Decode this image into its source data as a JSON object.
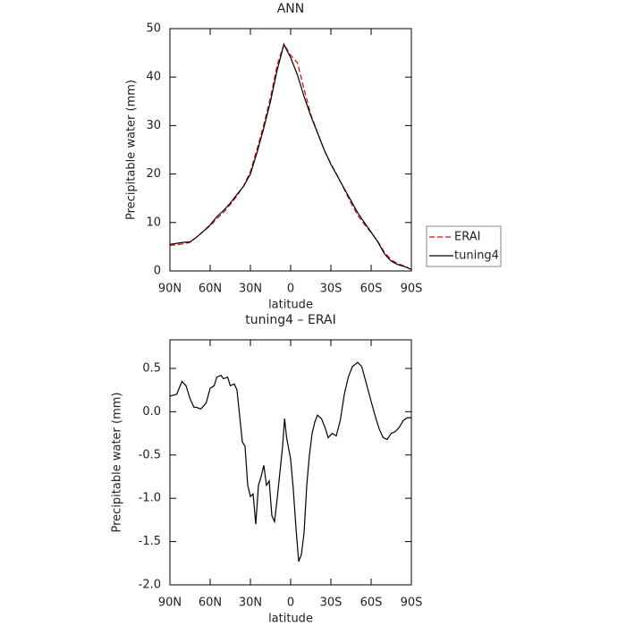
{
  "chart_data": [
    {
      "type": "line",
      "title": "ANN",
      "xlabel": "latitude",
      "ylabel": "Precipitable water (mm)",
      "x": [
        90,
        85,
        80,
        75,
        70,
        65,
        60,
        55,
        50,
        45,
        40,
        35,
        30,
        25,
        20,
        15,
        10,
        5,
        0,
        -5,
        -10,
        -15,
        -20,
        -25,
        -30,
        -35,
        -40,
        -45,
        -50,
        -55,
        -60,
        -65,
        -70,
        -75,
        -80,
        -85,
        -90
      ],
      "series": [
        {
          "name": "ERAI",
          "color": "#e00000",
          "linestyle": "dashed",
          "values": [
            5.3,
            5.4,
            5.6,
            5.9,
            7.0,
            8.2,
            9.3,
            10.8,
            12.1,
            13.7,
            15.5,
            17.6,
            20.5,
            25.2,
            30.2,
            35.8,
            42.5,
            46.8,
            44.5,
            43.0,
            37.5,
            32.3,
            28.6,
            25.0,
            22.1,
            19.6,
            16.8,
            14.0,
            11.5,
            9.6,
            7.9,
            6.1,
            3.8,
            2.3,
            1.5,
            1.0,
            0.3
          ]
        },
        {
          "name": "tuning4",
          "color": "#000000",
          "linestyle": "solid",
          "values": [
            5.5,
            5.7,
            5.9,
            6.0,
            7.0,
            8.2,
            9.5,
            11.2,
            12.5,
            14.0,
            15.8,
            17.5,
            20.0,
            24.5,
            29.5,
            35.0,
            41.5,
            46.7,
            44.0,
            40.5,
            36.0,
            32.0,
            28.5,
            25.0,
            22.0,
            19.5,
            17.0,
            14.5,
            12.0,
            10.0,
            8.0,
            6.0,
            3.5,
            2.0,
            1.3,
            0.9,
            0.3
          ]
        }
      ],
      "xlim": [
        90,
        -90
      ],
      "xticks": [
        {
          "value": 90,
          "label": "90N"
        },
        {
          "value": 60,
          "label": "60N"
        },
        {
          "value": 30,
          "label": "30N"
        },
        0,
        {
          "value": -30,
          "label": "30S"
        },
        {
          "value": -60,
          "label": "60S"
        },
        {
          "value": -90,
          "label": "90S"
        }
      ],
      "ylim": [
        0,
        50
      ],
      "yticks": [
        0,
        10,
        20,
        30,
        40,
        50
      ],
      "legend": "right"
    },
    {
      "type": "line",
      "title": "tuning4 – ERAI",
      "xlabel": "latitude",
      "ylabel": "Precipitable water (mm)",
      "x": [
        90,
        85,
        81,
        78,
        75,
        72,
        70,
        67,
        63,
        60,
        57,
        55,
        52,
        50,
        47,
        45,
        42,
        40,
        38,
        36,
        34,
        32,
        30,
        28,
        26,
        24,
        22,
        20,
        18,
        16,
        14,
        12,
        10,
        8,
        6,
        4.5,
        3,
        0,
        -2,
        -4,
        -6,
        -8,
        -10,
        -12,
        -14,
        -16,
        -18,
        -20,
        -23,
        -26,
        -28,
        -31,
        -34,
        -37,
        -40,
        -43,
        -46,
        -50,
        -53,
        -56,
        -60,
        -63,
        -66,
        -69,
        -72,
        -75,
        -78,
        -81,
        -84,
        -87,
        -90
      ],
      "series": [
        {
          "color": "#000000",
          "linestyle": "solid",
          "values": [
            0.18,
            0.2,
            0.35,
            0.3,
            0.15,
            0.05,
            0.05,
            0.03,
            0.1,
            0.27,
            0.3,
            0.4,
            0.42,
            0.38,
            0.4,
            0.3,
            0.32,
            0.25,
            -0.05,
            -0.35,
            -0.4,
            -0.85,
            -0.98,
            -0.95,
            -1.3,
            -0.85,
            -0.75,
            -0.62,
            -0.85,
            -0.8,
            -1.2,
            -1.27,
            -1.0,
            -0.7,
            -0.4,
            -0.08,
            -0.3,
            -0.55,
            -0.9,
            -1.35,
            -1.73,
            -1.65,
            -1.4,
            -0.85,
            -0.5,
            -0.25,
            -0.12,
            -0.04,
            -0.08,
            -0.2,
            -0.3,
            -0.25,
            -0.28,
            -0.1,
            0.2,
            0.4,
            0.52,
            0.57,
            0.52,
            0.35,
            0.12,
            -0.05,
            -0.2,
            -0.3,
            -0.32,
            -0.25,
            -0.23,
            -0.18,
            -0.1,
            -0.07,
            -0.07
          ]
        }
      ],
      "xlim": [
        90,
        -90
      ],
      "xticks": [
        {
          "value": 90,
          "label": "90N"
        },
        {
          "value": 60,
          "label": "60N"
        },
        {
          "value": 30,
          "label": "30N"
        },
        0,
        {
          "value": -30,
          "label": "30S"
        },
        {
          "value": -60,
          "label": "60S"
        },
        {
          "value": -90,
          "label": "90S"
        }
      ],
      "ylim": [
        -2.0,
        0.83
      ],
      "yticks": [
        0.5,
        {
          "value": 0,
          "label": "0.0"
        },
        -0.5,
        {
          "value": -1,
          "label": "-1.0"
        },
        -1.5,
        {
          "value": -2,
          "label": "-2.0"
        }
      ]
    }
  ]
}
